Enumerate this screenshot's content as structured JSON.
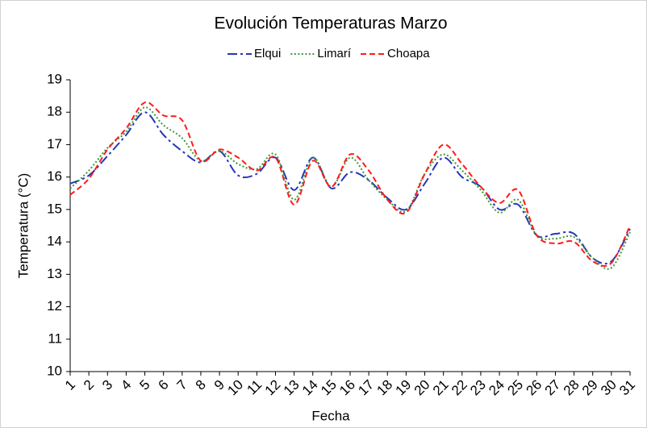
{
  "chart_data": {
    "type": "line",
    "title": "Evolución Temperaturas Marzo",
    "x_label": "Fecha",
    "y_label": "Temperatura (°C)",
    "categories": [
      "1",
      "2",
      "3",
      "4",
      "5",
      "6",
      "7",
      "8",
      "9",
      "10",
      "11",
      "12",
      "13",
      "14",
      "15",
      "16",
      "17",
      "18",
      "19",
      "20",
      "21",
      "22",
      "23",
      "24",
      "25",
      "26",
      "27",
      "28",
      "29",
      "30",
      "31"
    ],
    "series": [
      {
        "name": "Elqui",
        "color": "#2436b8",
        "values": [
          15.8,
          16.05,
          16.65,
          17.3,
          18.0,
          17.3,
          16.8,
          16.45,
          16.8,
          16.05,
          16.1,
          16.6,
          15.6,
          16.6,
          15.65,
          16.15,
          15.9,
          15.35,
          15.0,
          15.8,
          16.6,
          16.0,
          15.7,
          15.0,
          15.15,
          14.2,
          14.25,
          14.25,
          13.5,
          13.4,
          14.4
        ]
      },
      {
        "name": "Limarí",
        "color": "#3b9a3b",
        "values": [
          15.65,
          16.2,
          16.9,
          17.4,
          18.15,
          17.6,
          17.2,
          16.5,
          16.8,
          16.4,
          16.25,
          16.7,
          15.3,
          16.6,
          15.7,
          16.6,
          15.9,
          15.3,
          14.95,
          16.1,
          16.7,
          16.2,
          15.6,
          14.9,
          15.3,
          14.2,
          14.1,
          14.15,
          13.5,
          13.2,
          14.3
        ]
      },
      {
        "name": "Choapa",
        "color": "#ff1a1a",
        "values": [
          15.45,
          15.95,
          16.85,
          17.5,
          18.3,
          17.9,
          17.75,
          16.5,
          16.85,
          16.6,
          16.2,
          16.6,
          15.15,
          16.5,
          15.7,
          16.7,
          16.2,
          15.3,
          14.9,
          16.1,
          17.0,
          16.4,
          15.7,
          15.2,
          15.6,
          14.2,
          13.95,
          14.0,
          13.4,
          13.35,
          14.5
        ]
      }
    ],
    "ylim": [
      10,
      19
    ],
    "yticks": [
      10,
      11,
      12,
      13,
      14,
      15,
      16,
      17,
      18,
      19
    ],
    "grid": false,
    "legend": "top"
  }
}
